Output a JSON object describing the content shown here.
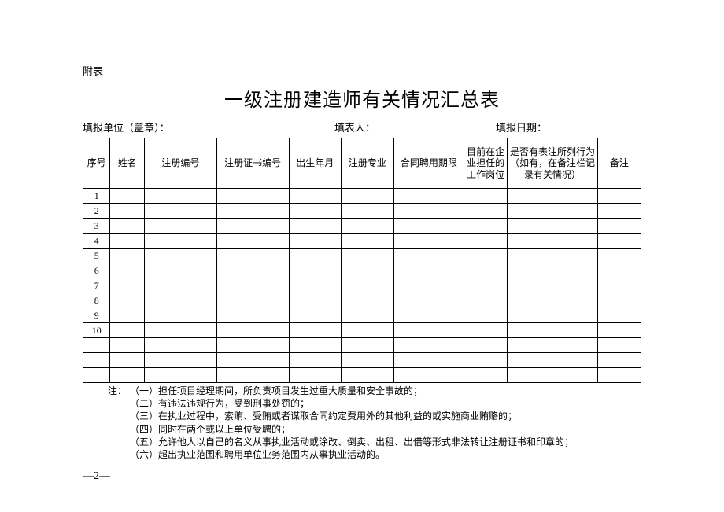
{
  "attachment_label": "附表",
  "title": "一级注册建造师有关情况汇总表",
  "meta": {
    "unit_label": "填报单位（盖章）：",
    "person_label": "填表人：",
    "date_label": "填报日期："
  },
  "table": {
    "headers": {
      "seq": "序号",
      "name": "姓名",
      "reg_no": "注册编号",
      "cert_no": "注册证书编号",
      "birth": "出生年月",
      "major": "注册专业",
      "term": "合同聘用期限",
      "position": "目前在企业担任的工作岗位",
      "behavior": "是否有表注所列行为（如有，在备注栏记录有关情况）",
      "remark": "备注"
    },
    "rows": [
      {
        "seq": "1"
      },
      {
        "seq": "2"
      },
      {
        "seq": "3"
      },
      {
        "seq": "4"
      },
      {
        "seq": "5"
      },
      {
        "seq": "6"
      },
      {
        "seq": "7"
      },
      {
        "seq": "8"
      },
      {
        "seq": "9"
      },
      {
        "seq": "10"
      }
    ],
    "empty_row_count": 3,
    "border_color": "#000000"
  },
  "notes": {
    "label": "注：",
    "items": [
      "（一）担任项目经理期间，所负责项目发生过重大质量和安全事故的；",
      "（二）有违法违规行为，受到刑事处罚的；",
      "（三）在执业过程中，索贿、受贿或者谋取合同约定费用外的其他利益的或实施商业贿赂的；",
      "（四）同时在两个或以上单位受聘的；",
      "（五）允许他人以自己的名义从事执业活动或涂改、倒卖、出租、出借等形式非法转让注册证书和印章的；",
      "（六）超出执业范围和聘用单位业务范围内从事执业活动的。"
    ]
  },
  "page_number": "—2—"
}
